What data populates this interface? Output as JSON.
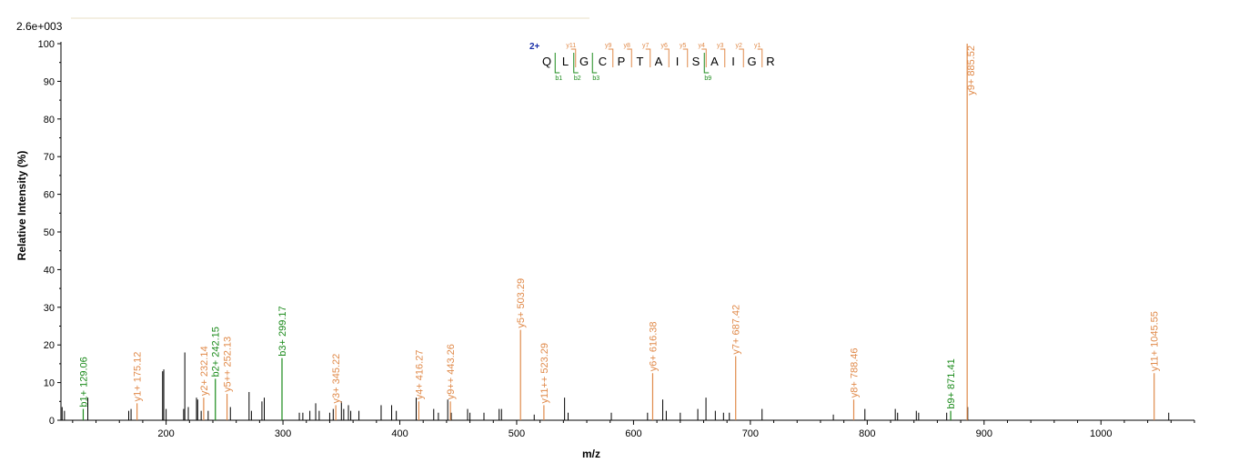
{
  "chart_data": {
    "type": "bar",
    "title": "",
    "scale_label": "2.6e+003",
    "xlabel": "m/z",
    "ylabel": "Relative   Intensity (%)",
    "xlim": [
      110,
      1080
    ],
    "ylim": [
      0,
      100
    ],
    "x_ticks": [
      200,
      300,
      400,
      500,
      600,
      700,
      800,
      900,
      1000
    ],
    "y_ticks": [
      0,
      10,
      20,
      30,
      40,
      50,
      60,
      70,
      80,
      90,
      100
    ],
    "colors": {
      "y_ion": "#e08a4a",
      "b_ion": "#1a8a1a",
      "other": "#000000",
      "charge": "#1a2fa8"
    },
    "sequence": {
      "charge": "2+",
      "residues": [
        "Q",
        "L",
        "G",
        "C",
        "P",
        "T",
        "A",
        "I",
        "S",
        "A",
        "I",
        "G",
        "R"
      ],
      "y_fragments": [
        {
          "label": "y11",
          "after": 1
        },
        {
          "label": "y9",
          "after": 3
        },
        {
          "label": "y8",
          "after": 4
        },
        {
          "label": "y7",
          "after": 5
        },
        {
          "label": "y6",
          "after": 6
        },
        {
          "label": "y5",
          "after": 7
        },
        {
          "label": "y4",
          "after": 8
        },
        {
          "label": "y3",
          "after": 9
        },
        {
          "label": "y2",
          "after": 10
        },
        {
          "label": "y1",
          "after": 11
        }
      ],
      "b_fragments": [
        {
          "label": "b1",
          "after": 0
        },
        {
          "label": "b2",
          "after": 1
        },
        {
          "label": "b3",
          "after": 2
        },
        {
          "label": "b9",
          "after": 8
        }
      ]
    },
    "annotated_peaks": [
      {
        "mz": 129.06,
        "intensity": 3.0,
        "ion": "b",
        "label": "b1+ 129.06"
      },
      {
        "mz": 175.12,
        "intensity": 4.5,
        "ion": "y",
        "label": "y1+ 175.12"
      },
      {
        "mz": 232.14,
        "intensity": 6.0,
        "ion": "y",
        "label": "y2+ 232.14"
      },
      {
        "mz": 242.15,
        "intensity": 11.0,
        "ion": "b",
        "label": "b2+ 242.15"
      },
      {
        "mz": 252.13,
        "intensity": 7.0,
        "ion": "y",
        "label": "y5++ 252.13"
      },
      {
        "mz": 299.17,
        "intensity": 16.5,
        "ion": "b",
        "label": "b3+ 299.17"
      },
      {
        "mz": 345.22,
        "intensity": 4.0,
        "ion": "y",
        "label": "y3+ 345.22"
      },
      {
        "mz": 416.27,
        "intensity": 5.0,
        "ion": "y",
        "label": "y4+ 416.27"
      },
      {
        "mz": 443.26,
        "intensity": 5.0,
        "ion": "y",
        "label": "y9++ 443.26"
      },
      {
        "mz": 503.29,
        "intensity": 24.0,
        "ion": "y",
        "label": "y5+ 503.29"
      },
      {
        "mz": 523.29,
        "intensity": 4.0,
        "ion": "y",
        "label": "y11++ 523.29"
      },
      {
        "mz": 616.38,
        "intensity": 12.5,
        "ion": "y",
        "label": "y6+ 616.38"
      },
      {
        "mz": 687.42,
        "intensity": 17.0,
        "ion": "y",
        "label": "y7+ 687.42"
      },
      {
        "mz": 788.46,
        "intensity": 5.5,
        "ion": "y",
        "label": "y8+ 788.46"
      },
      {
        "mz": 871.41,
        "intensity": 2.5,
        "ion": "b",
        "label": "b9+ 871.41"
      },
      {
        "mz": 885.52,
        "intensity": 100,
        "ion": "y",
        "label": "y9+ 885.52"
      },
      {
        "mz": 1045.55,
        "intensity": 12.5,
        "ion": "y",
        "label": "y11+ 1045.55"
      }
    ],
    "other_peaks": [
      {
        "mz": 111,
        "intensity": 3.5
      },
      {
        "mz": 113,
        "intensity": 2.5
      },
      {
        "mz": 133,
        "intensity": 6.0
      },
      {
        "mz": 168,
        "intensity": 2.5
      },
      {
        "mz": 170,
        "intensity": 3.0
      },
      {
        "mz": 197,
        "intensity": 13.0
      },
      {
        "mz": 198,
        "intensity": 13.5
      },
      {
        "mz": 200,
        "intensity": 3.0
      },
      {
        "mz": 215,
        "intensity": 3.0
      },
      {
        "mz": 216,
        "intensity": 18.0
      },
      {
        "mz": 219,
        "intensity": 3.5
      },
      {
        "mz": 226,
        "intensity": 6.0
      },
      {
        "mz": 227,
        "intensity": 5.5
      },
      {
        "mz": 230,
        "intensity": 2.5
      },
      {
        "mz": 236,
        "intensity": 2.5
      },
      {
        "mz": 255,
        "intensity": 3.5
      },
      {
        "mz": 271,
        "intensity": 7.5
      },
      {
        "mz": 273,
        "intensity": 2.5
      },
      {
        "mz": 282,
        "intensity": 5.0
      },
      {
        "mz": 284,
        "intensity": 6.0
      },
      {
        "mz": 314,
        "intensity": 2.0
      },
      {
        "mz": 317,
        "intensity": 2.0
      },
      {
        "mz": 323,
        "intensity": 2.5
      },
      {
        "mz": 328,
        "intensity": 4.5
      },
      {
        "mz": 331,
        "intensity": 2.5
      },
      {
        "mz": 340,
        "intensity": 2.0
      },
      {
        "mz": 343,
        "intensity": 3.0
      },
      {
        "mz": 350,
        "intensity": 5.0
      },
      {
        "mz": 352,
        "intensity": 3.0
      },
      {
        "mz": 356,
        "intensity": 4.0
      },
      {
        "mz": 358,
        "intensity": 2.5
      },
      {
        "mz": 365,
        "intensity": 2.5
      },
      {
        "mz": 384,
        "intensity": 4.0
      },
      {
        "mz": 393,
        "intensity": 4.0
      },
      {
        "mz": 397,
        "intensity": 2.5
      },
      {
        "mz": 414,
        "intensity": 6.0
      },
      {
        "mz": 429,
        "intensity": 3.0
      },
      {
        "mz": 433,
        "intensity": 2.0
      },
      {
        "mz": 441,
        "intensity": 5.5
      },
      {
        "mz": 444,
        "intensity": 2.0
      },
      {
        "mz": 458,
        "intensity": 3.0
      },
      {
        "mz": 460,
        "intensity": 2.0
      },
      {
        "mz": 472,
        "intensity": 2.0
      },
      {
        "mz": 485,
        "intensity": 3.0
      },
      {
        "mz": 487,
        "intensity": 3.0
      },
      {
        "mz": 515,
        "intensity": 1.5
      },
      {
        "mz": 541,
        "intensity": 6.0
      },
      {
        "mz": 544,
        "intensity": 2.0
      },
      {
        "mz": 581,
        "intensity": 2.0
      },
      {
        "mz": 612,
        "intensity": 2.0
      },
      {
        "mz": 625,
        "intensity": 5.5
      },
      {
        "mz": 628,
        "intensity": 2.5
      },
      {
        "mz": 640,
        "intensity": 2.0
      },
      {
        "mz": 655,
        "intensity": 3.0
      },
      {
        "mz": 662,
        "intensity": 6.0
      },
      {
        "mz": 670,
        "intensity": 2.5
      },
      {
        "mz": 677,
        "intensity": 2.0
      },
      {
        "mz": 682,
        "intensity": 2.0
      },
      {
        "mz": 710,
        "intensity": 3.0
      },
      {
        "mz": 771,
        "intensity": 1.5
      },
      {
        "mz": 798,
        "intensity": 3.0
      },
      {
        "mz": 824,
        "intensity": 3.0
      },
      {
        "mz": 826,
        "intensity": 2.0
      },
      {
        "mz": 842,
        "intensity": 2.5
      },
      {
        "mz": 844,
        "intensity": 2.0
      },
      {
        "mz": 868,
        "intensity": 2.0
      },
      {
        "mz": 886,
        "intensity": 3.5
      },
      {
        "mz": 1058,
        "intensity": 2.0
      }
    ]
  }
}
